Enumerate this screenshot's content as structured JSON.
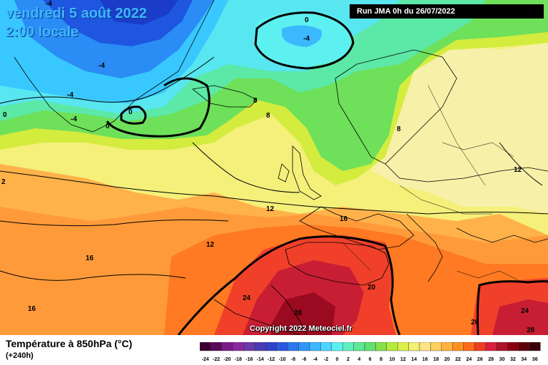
{
  "title": {
    "date_line": "vendredi 5 août 2022",
    "time_line": "2:00 locale"
  },
  "run_info": "Run JMA 0h du 26/07/2022",
  "copyright": "Copyright 2022 Meteociel.fr",
  "variable": "Température à 850hPa (°C)",
  "lead_time": "(+240h)",
  "contour_labels": [
    "-4",
    "0",
    "-4",
    "-4",
    "-4",
    "-4",
    "0",
    "0",
    "0",
    "8",
    "8",
    "8",
    "12",
    "12",
    "12",
    "16",
    "16",
    "16",
    "20",
    "20",
    "24",
    "24",
    "28",
    "28",
    "2",
    "4"
  ],
  "colorbar": {
    "labels": [
      "-24",
      "-22",
      "-20",
      "-18",
      "-16",
      "-14",
      "-12",
      "-10",
      "-8",
      "-6",
      "-4",
      "-2",
      "0",
      "2",
      "4",
      "6",
      "8",
      "10",
      "12",
      "14",
      "16",
      "18",
      "20",
      "22",
      "24",
      "26",
      "28",
      "30",
      "32",
      "34",
      "36"
    ],
    "colors": [
      "#3c0033",
      "#5a0a5a",
      "#7a1a8a",
      "#8a2aa0",
      "#6a3aaa",
      "#4a3ab5",
      "#3040c8",
      "#2a58e0",
      "#2a78f0",
      "#2e98fa",
      "#3cb8ff",
      "#4cd6ff",
      "#5cf0f0",
      "#60f0c0",
      "#5ce896",
      "#60e070",
      "#88e04a",
      "#b4ec3c",
      "#dcf04a",
      "#f2f070",
      "#ffe488",
      "#ffd060",
      "#ffb23c",
      "#ff9020",
      "#ff6a1a",
      "#f03c20",
      "#d8203c",
      "#b01028",
      "#8a0010",
      "#600008",
      "#3a0008"
    ]
  }
}
